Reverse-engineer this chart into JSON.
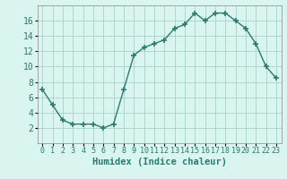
{
  "x": [
    0,
    1,
    2,
    3,
    4,
    5,
    6,
    7,
    8,
    9,
    10,
    11,
    12,
    13,
    14,
    15,
    16,
    17,
    18,
    19,
    20,
    21,
    22,
    23
  ],
  "y": [
    7,
    5,
    3,
    2.5,
    2.5,
    2.5,
    2,
    2.5,
    7,
    11.5,
    12.5,
    13,
    13.5,
    15,
    15.5,
    17,
    16,
    17,
    17,
    16,
    15,
    13,
    10,
    8.5
  ],
  "line_color": "#2d7a6e",
  "marker": "+",
  "marker_size": 4,
  "bg_color": "#d8f5f0",
  "grid_color": "#aacfca",
  "xlabel": "Humidex (Indice chaleur)",
  "ylim": [
    0,
    18
  ],
  "xlim": [
    -0.5,
    23.5
  ],
  "yticks": [
    2,
    4,
    6,
    8,
    10,
    12,
    14,
    16
  ],
  "xticks": [
    0,
    1,
    2,
    3,
    4,
    5,
    6,
    7,
    8,
    9,
    10,
    11,
    12,
    13,
    14,
    15,
    16,
    17,
    18,
    19,
    20,
    21,
    22,
    23
  ],
  "xlabel_fontsize": 7.5,
  "ytick_fontsize": 7,
  "xtick_fontsize": 6,
  "line_width": 1.0
}
